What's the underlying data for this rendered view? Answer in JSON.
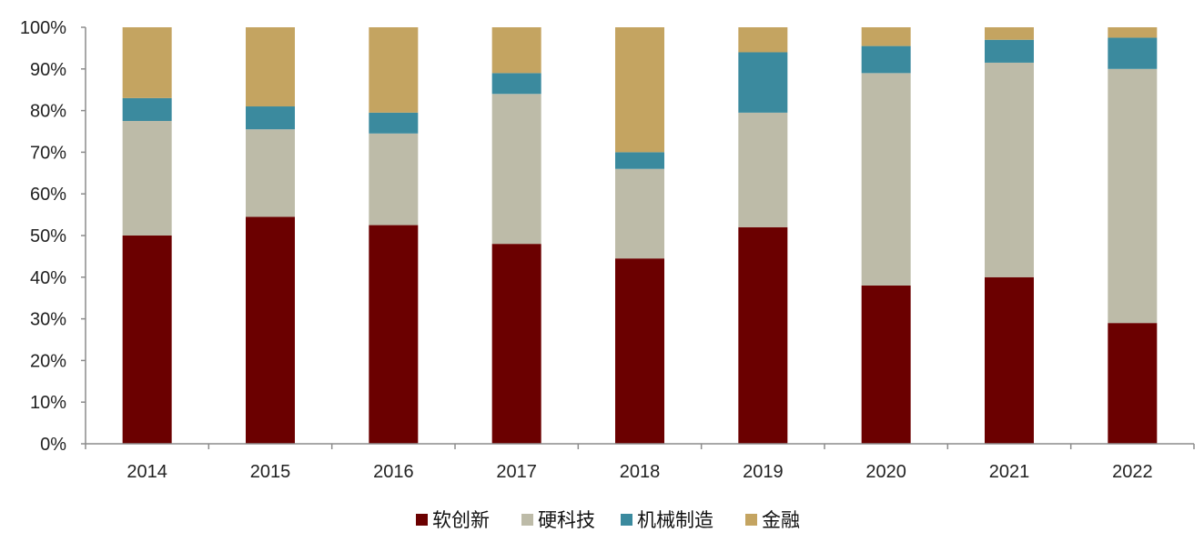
{
  "chart_data": {
    "type": "bar",
    "stacked": true,
    "percent_stacked": true,
    "categories": [
      "2014",
      "2015",
      "2016",
      "2017",
      "2018",
      "2019",
      "2020",
      "2021",
      "2022"
    ],
    "series": [
      {
        "name": "软创新",
        "color": "#6B0000",
        "values": [
          50.0,
          54.5,
          52.5,
          48.0,
          44.5,
          52.0,
          38.0,
          40.0,
          29.0
        ]
      },
      {
        "name": "硬科技",
        "color": "#BDBBA8",
        "values": [
          27.5,
          21.0,
          22.0,
          36.0,
          21.5,
          27.5,
          51.0,
          51.5,
          61.0
        ]
      },
      {
        "name": "机械制造",
        "color": "#3B8A9E",
        "values": [
          5.5,
          5.5,
          5.0,
          5.0,
          4.0,
          14.5,
          6.5,
          5.5,
          7.5
        ]
      },
      {
        "name": "金融",
        "color": "#C4A461",
        "values": [
          17.0,
          19.0,
          20.5,
          11.0,
          30.0,
          6.0,
          4.5,
          3.0,
          2.5
        ]
      }
    ],
    "y_ticks": [
      "0%",
      "10%",
      "20%",
      "30%",
      "40%",
      "50%",
      "60%",
      "70%",
      "80%",
      "90%",
      "100%"
    ],
    "ylim": [
      0,
      100
    ],
    "title": "",
    "xlabel": "",
    "ylabel": "",
    "grid": false,
    "legend_position": "bottom-center",
    "axis_color": "#8C8C8C"
  }
}
